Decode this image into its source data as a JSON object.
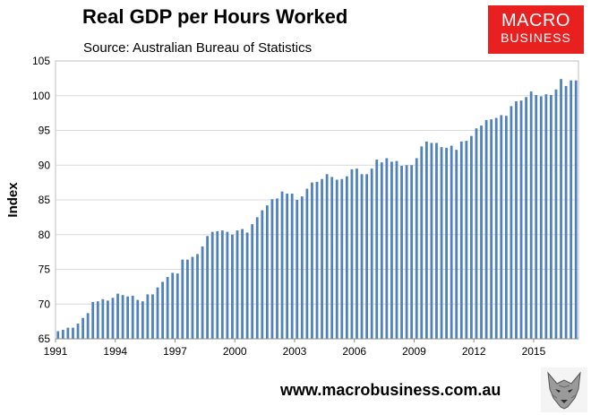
{
  "title": "Real GDP per Hours Worked",
  "subtitle": "Source: Australian Bureau of Statistics",
  "logo": {
    "line1": "MACRO",
    "line2": "BUSINESS",
    "color": "#e8201f"
  },
  "website": "www.macrobusiness.com.au",
  "chart_data": {
    "type": "bar",
    "ylabel": "Index",
    "xlabel": "",
    "ylim": [
      65,
      105
    ],
    "yticks": [
      65,
      70,
      75,
      80,
      85,
      90,
      95,
      100,
      105
    ],
    "xtick_labels": [
      "1991",
      "1994",
      "1997",
      "2000",
      "2003",
      "2006",
      "2009",
      "2012",
      "2015"
    ],
    "frequency": "quarterly",
    "start": "1991 Q1",
    "bar_color": "#4f81bd",
    "grid": "horizontal",
    "values": [
      66.1,
      66.3,
      66.6,
      66.6,
      67.2,
      68.0,
      68.7,
      70.3,
      70.4,
      70.7,
      70.5,
      70.9,
      71.5,
      71.3,
      71.1,
      71.2,
      70.6,
      70.4,
      71.4,
      71.4,
      72.4,
      73.2,
      73.9,
      74.5,
      74.4,
      76.4,
      76.4,
      76.8,
      77.2,
      78.3,
      79.8,
      80.4,
      80.5,
      80.6,
      80.4,
      80.0,
      80.6,
      80.8,
      80.3,
      81.5,
      82.5,
      83.5,
      84.2,
      85.1,
      85.2,
      86.2,
      85.9,
      85.9,
      85.0,
      85.5,
      86.6,
      87.5,
      87.6,
      88.0,
      88.7,
      88.3,
      87.9,
      88.0,
      88.4,
      89.4,
      89.5,
      88.7,
      88.7,
      89.5,
      90.8,
      90.4,
      91.0,
      90.5,
      90.6,
      89.9,
      90.0,
      90.0,
      91.0,
      92.7,
      93.4,
      93.2,
      93.2,
      92.6,
      92.5,
      92.8,
      92.2,
      93.4,
      93.5,
      94.2,
      95.3,
      95.7,
      96.5,
      96.6,
      96.8,
      97.2,
      97.1,
      98.5,
      99.2,
      99.3,
      99.8,
      100.6,
      100.1,
      99.9,
      100.2,
      100.1,
      100.9,
      102.4,
      101.4,
      102.2,
      102.2
    ]
  }
}
